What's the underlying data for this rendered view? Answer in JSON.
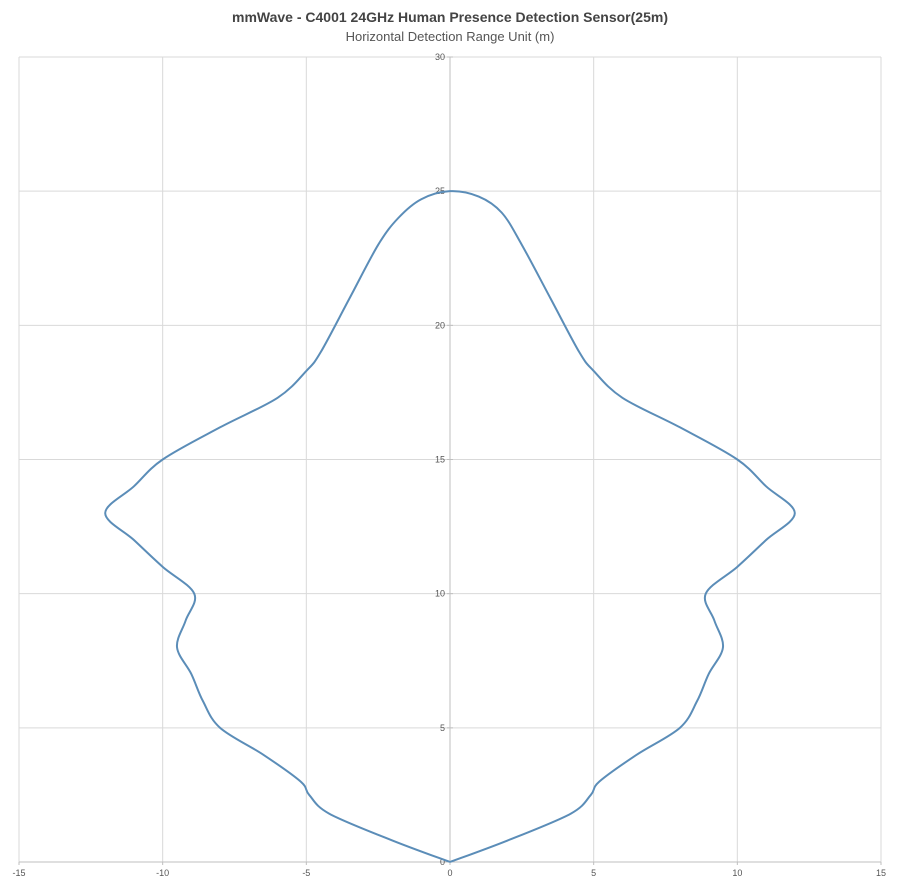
{
  "chart_data": {
    "type": "line",
    "title": "mmWave - C4001 24GHz Human Presence Detection Sensor(25m)",
    "subtitle": "Horizontal Detection Range Unit (m)",
    "xlabel": "",
    "ylabel": "",
    "xlim": [
      -15,
      15
    ],
    "ylim": [
      0,
      30
    ],
    "x_ticks": [
      -15,
      -10,
      -5,
      0,
      5,
      10,
      15
    ],
    "y_ticks": [
      0,
      5,
      10,
      15,
      20,
      25,
      30
    ],
    "grid": true,
    "legend": "none",
    "series": [
      {
        "color": "#5b8db8",
        "points": [
          [
            0,
            0
          ],
          [
            2.0,
            0.8
          ],
          [
            4.2,
            1.8
          ],
          [
            4.9,
            2.5
          ],
          [
            5.2,
            3.0
          ],
          [
            6.5,
            4.0
          ],
          [
            8.0,
            5.0
          ],
          [
            8.6,
            6.0
          ],
          [
            9.0,
            7.0
          ],
          [
            9.5,
            8.0
          ],
          [
            9.2,
            9.0
          ],
          [
            8.9,
            10.0
          ],
          [
            10.0,
            11.0
          ],
          [
            11.0,
            12.0
          ],
          [
            12.0,
            13.0
          ],
          [
            11.0,
            14.0
          ],
          [
            10.0,
            15.0
          ],
          [
            8.0,
            16.2
          ],
          [
            6.0,
            17.3
          ],
          [
            5.0,
            18.3
          ],
          [
            4.5,
            19.0
          ],
          [
            3.5,
            21.0
          ],
          [
            2.5,
            23.0
          ],
          [
            1.8,
            24.2
          ],
          [
            1.0,
            24.8
          ],
          [
            0,
            25.0
          ],
          [
            -1.0,
            24.7
          ],
          [
            -1.8,
            24.0
          ],
          [
            -2.5,
            23.0
          ],
          [
            -3.5,
            21.0
          ],
          [
            -4.5,
            19.0
          ],
          [
            -5.0,
            18.3
          ],
          [
            -6.0,
            17.3
          ],
          [
            -8.0,
            16.2
          ],
          [
            -10.0,
            15.0
          ],
          [
            -11.0,
            14.0
          ],
          [
            -12.0,
            13.0
          ],
          [
            -11.0,
            12.0
          ],
          [
            -10.0,
            11.0
          ],
          [
            -8.9,
            10.0
          ],
          [
            -9.2,
            9.0
          ],
          [
            -9.5,
            8.0
          ],
          [
            -9.0,
            7.0
          ],
          [
            -8.6,
            6.0
          ],
          [
            -8.0,
            5.0
          ],
          [
            -6.5,
            4.0
          ],
          [
            -5.2,
            3.0
          ],
          [
            -4.9,
            2.5
          ],
          [
            -4.2,
            1.8
          ],
          [
            -2.0,
            0.8
          ],
          [
            0,
            0
          ]
        ]
      }
    ]
  },
  "colors": {
    "grid": "#d9d9d9",
    "axis": "#bfbfbf",
    "series": "#5b8db8"
  }
}
